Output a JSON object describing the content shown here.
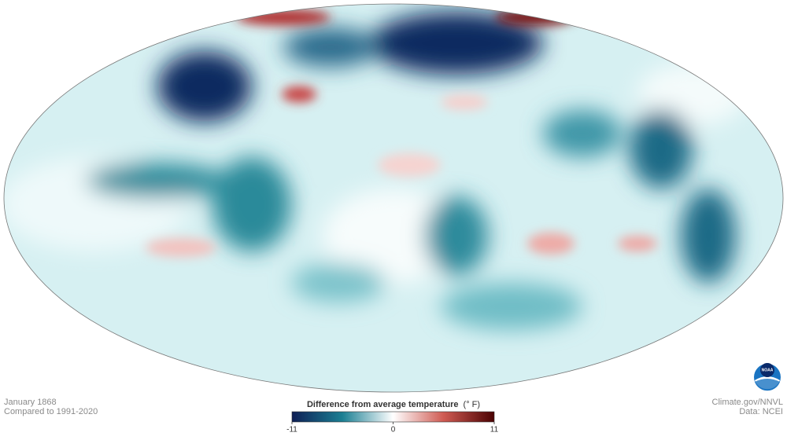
{
  "map": {
    "date": "January 1868",
    "baseline": "Compared to 1991-2020"
  },
  "legend": {
    "title": "Difference from average temperature",
    "unit": "(° F)",
    "range": [
      -11,
      11
    ],
    "ticks": [
      -11,
      0,
      11
    ],
    "colors": [
      "#0e1f55",
      "#1b7f93",
      "#ffffff",
      "#cf5a52",
      "#4a0202"
    ]
  },
  "credits": {
    "source": "Climate.gov/NNVL",
    "data": "Data: NCEI",
    "logo": "NOAA"
  }
}
